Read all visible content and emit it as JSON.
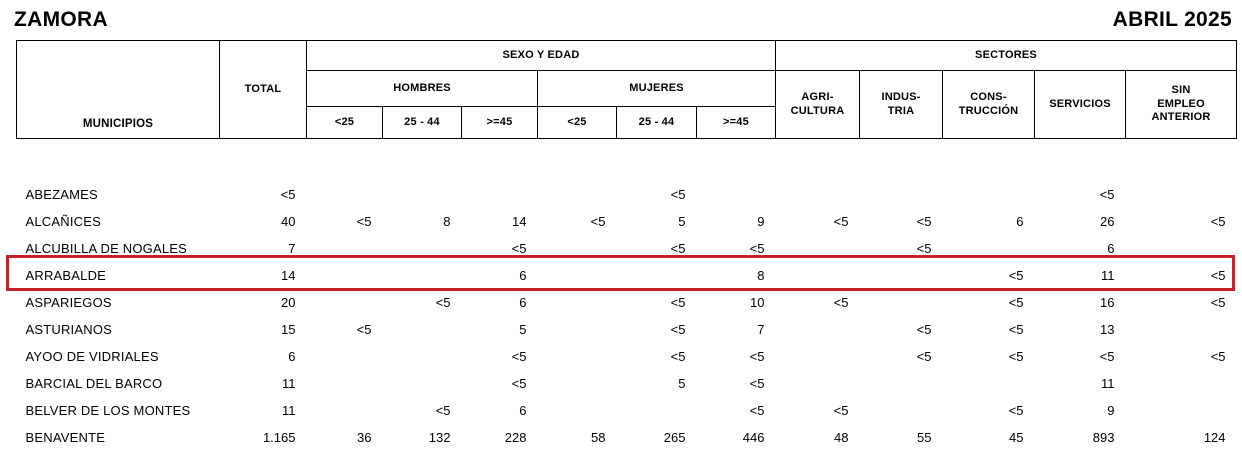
{
  "page": {
    "title": "ZAMORA",
    "period": "ABRIL 2025"
  },
  "colors": {
    "highlight_border": "#c4232b",
    "table_border": "#000000",
    "text": "#000000",
    "background": "#ffffff"
  },
  "table": {
    "header": {
      "municipios": "MUNICIPIOS",
      "total": "TOTAL",
      "sexo_edad": "SEXO Y EDAD",
      "hombres": "HOMBRES",
      "mujeres": "MUJERES",
      "age_cols": [
        "<25",
        "25 - 44",
        ">=45"
      ],
      "sectores": "SECTORES",
      "sector_cols": [
        "AGRI-\nCULTURA",
        "INDUS-\nTRIA",
        "CONS-\nTRUCCIÓN",
        "SERVICIOS",
        "SIN\nEMPLEO\nANTERIOR"
      ]
    },
    "column_keys": [
      "total",
      "hombres_lt25",
      "hombres_25_44",
      "hombres_ge45",
      "mujeres_lt25",
      "mujeres_25_44",
      "mujeres_ge45",
      "agricultura",
      "industria",
      "construccion",
      "servicios",
      "sin_empleo_anterior"
    ],
    "rows": [
      {
        "municipio": "ABEZAMES",
        "values": [
          "<5",
          "",
          "",
          "",
          "",
          "<5",
          "",
          "",
          "",
          "",
          "<5",
          ""
        ]
      },
      {
        "municipio": "ALCAÑICES",
        "values": [
          "40",
          "<5",
          "8",
          "14",
          "<5",
          "5",
          "9",
          "<5",
          "<5",
          "6",
          "26",
          "<5"
        ]
      },
      {
        "municipio": "ALCUBILLA DE NOGALES",
        "values": [
          "7",
          "",
          "",
          "<5",
          "",
          "<5",
          "<5",
          "",
          "<5",
          "",
          "6",
          ""
        ]
      },
      {
        "municipio": "ARRABALDE",
        "values": [
          "14",
          "",
          "",
          "6",
          "",
          "",
          "8",
          "",
          "",
          "<5",
          "11",
          "<5"
        ]
      },
      {
        "municipio": "ASPARIEGOS",
        "values": [
          "20",
          "",
          "<5",
          "6",
          "",
          "<5",
          "10",
          "<5",
          "",
          "<5",
          "16",
          "<5"
        ]
      },
      {
        "municipio": "ASTURIANOS",
        "values": [
          "15",
          "<5",
          "",
          "5",
          "",
          "<5",
          "7",
          "",
          "<5",
          "<5",
          "13",
          ""
        ]
      },
      {
        "municipio": "AYOO DE VIDRIALES",
        "values": [
          "6",
          "",
          "",
          "<5",
          "",
          "<5",
          "<5",
          "",
          "<5",
          "<5",
          "<5",
          "<5"
        ]
      },
      {
        "municipio": "BARCIAL DEL BARCO",
        "values": [
          "11",
          "",
          "",
          "<5",
          "",
          "5",
          "<5",
          "",
          "",
          "",
          "11",
          ""
        ]
      },
      {
        "municipio": "BELVER DE LOS MONTES",
        "values": [
          "11",
          "",
          "<5",
          "6",
          "",
          "",
          "<5",
          "<5",
          "",
          "<5",
          "9",
          ""
        ]
      },
      {
        "municipio": "BENAVENTE",
        "values": [
          "1.165",
          "36",
          "132",
          "228",
          "58",
          "265",
          "446",
          "48",
          "55",
          "45",
          "893",
          "124"
        ]
      }
    ],
    "highlighted_row": "ARRABALDE"
  }
}
